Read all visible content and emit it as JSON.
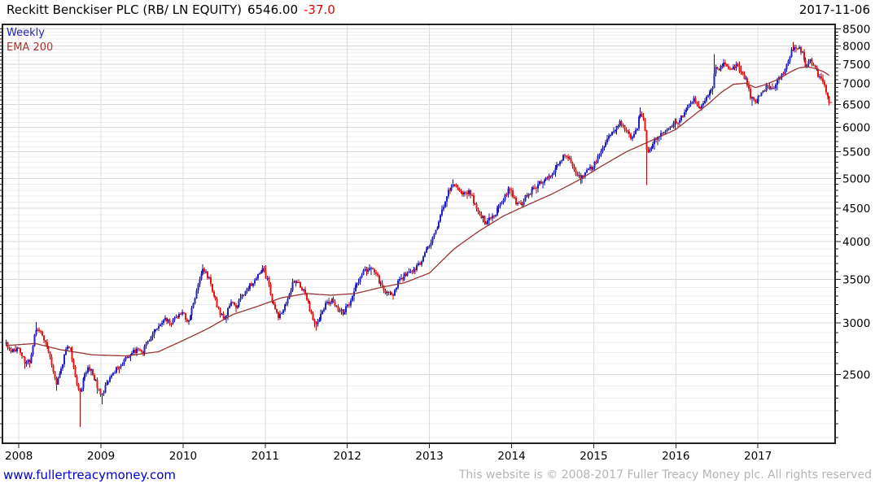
{
  "header": {
    "instrument": "Reckitt Benckiser PLC (RB/ LN EQUITY)",
    "price": "6546.00",
    "change": "-37.0",
    "date": "2017-11-06"
  },
  "legend": {
    "series1": "Weekly",
    "series2": "EMA 200"
  },
  "footer": {
    "site_link": "www.fullertreacymoney.com",
    "copyright": "This website is © 2008-2017 Fuller Treacy Money plc. All rights reserved"
  },
  "colors": {
    "up": "#2222cc",
    "up_edge": "#111199",
    "down": "#ee1111",
    "down_edge": "#bb0000",
    "ema": "#993333",
    "grid_minor": "#ededed",
    "grid_major": "#d6d6d6",
    "grid_vertical": "#dcdcdc",
    "axis": "#222222",
    "tick_text": "#000000",
    "change_text": "#e80000"
  },
  "chart_data": {
    "type": "candlestick",
    "frequency": "weekly",
    "title": "Reckitt Benckiser PLC (RB/ LN EQUITY)",
    "last_close": 6546.0,
    "change": -37.0,
    "date": "2017-11-06",
    "legend": [
      "Weekly",
      "EMA 200"
    ],
    "y_scale": "log",
    "xlabel": "",
    "ylabel": "",
    "x_ticks": [
      2008,
      2009,
      2010,
      2011,
      2012,
      2013,
      2014,
      2015,
      2016,
      2017
    ],
    "y_ticks": [
      2500,
      3000,
      3500,
      4000,
      4500,
      5000,
      5500,
      6000,
      6500,
      7000,
      7500,
      8000,
      8500
    ],
    "y_minor_step": 100,
    "xlim": [
      2007.8,
      2017.94
    ],
    "ylim": [
      1960,
      8630
    ],
    "grid": true,
    "close_path": [
      [
        2007.845,
        2790
      ],
      [
        2007.92,
        2700
      ],
      [
        2008.0,
        2760
      ],
      [
        2008.08,
        2590
      ],
      [
        2008.14,
        2630
      ],
      [
        2008.21,
        2950
      ],
      [
        2008.27,
        2890
      ],
      [
        2008.33,
        2800
      ],
      [
        2008.4,
        2600
      ],
      [
        2008.46,
        2420
      ],
      [
        2008.52,
        2560
      ],
      [
        2008.58,
        2760
      ],
      [
        2008.63,
        2720
      ],
      [
        2008.68,
        2500
      ],
      [
        2008.74,
        2320
      ],
      [
        2008.79,
        2470
      ],
      [
        2008.85,
        2560
      ],
      [
        2008.91,
        2490
      ],
      [
        2008.96,
        2390
      ],
      [
        2009.01,
        2320
      ],
      [
        2009.08,
        2440
      ],
      [
        2009.16,
        2530
      ],
      [
        2009.25,
        2600
      ],
      [
        2009.35,
        2670
      ],
      [
        2009.43,
        2730
      ],
      [
        2009.5,
        2690
      ],
      [
        2009.58,
        2810
      ],
      [
        2009.67,
        2930
      ],
      [
        2009.76,
        3050
      ],
      [
        2009.85,
        2990
      ],
      [
        2009.93,
        3070
      ],
      [
        2010.0,
        3110
      ],
      [
        2010.06,
        3000
      ],
      [
        2010.13,
        3230
      ],
      [
        2010.19,
        3450
      ],
      [
        2010.25,
        3630
      ],
      [
        2010.31,
        3520
      ],
      [
        2010.38,
        3300
      ],
      [
        2010.45,
        3080
      ],
      [
        2010.52,
        3060
      ],
      [
        2010.58,
        3250
      ],
      [
        2010.65,
        3170
      ],
      [
        2010.72,
        3310
      ],
      [
        2010.8,
        3410
      ],
      [
        2010.88,
        3490
      ],
      [
        2010.96,
        3640
      ],
      [
        2011.03,
        3490
      ],
      [
        2011.09,
        3230
      ],
      [
        2011.16,
        3050
      ],
      [
        2011.22,
        3120
      ],
      [
        2011.29,
        3340
      ],
      [
        2011.36,
        3500
      ],
      [
        2011.43,
        3430
      ],
      [
        2011.5,
        3300
      ],
      [
        2011.56,
        3090
      ],
      [
        2011.62,
        2980
      ],
      [
        2011.68,
        3110
      ],
      [
        2011.74,
        3210
      ],
      [
        2011.81,
        3240
      ],
      [
        2011.88,
        3160
      ],
      [
        2011.95,
        3110
      ],
      [
        2012.03,
        3230
      ],
      [
        2012.1,
        3410
      ],
      [
        2012.18,
        3570
      ],
      [
        2012.25,
        3640
      ],
      [
        2012.32,
        3610
      ],
      [
        2012.4,
        3460
      ],
      [
        2012.47,
        3340
      ],
      [
        2012.55,
        3310
      ],
      [
        2012.62,
        3460
      ],
      [
        2012.7,
        3560
      ],
      [
        2012.78,
        3610
      ],
      [
        2012.86,
        3660
      ],
      [
        2012.93,
        3810
      ],
      [
        2013.0,
        3960
      ],
      [
        2013.07,
        4110
      ],
      [
        2013.14,
        4400
      ],
      [
        2013.21,
        4720
      ],
      [
        2013.28,
        4900
      ],
      [
        2013.34,
        4850
      ],
      [
        2013.41,
        4720
      ],
      [
        2013.48,
        4780
      ],
      [
        2013.55,
        4580
      ],
      [
        2013.62,
        4400
      ],
      [
        2013.69,
        4290
      ],
      [
        2013.76,
        4340
      ],
      [
        2013.83,
        4480
      ],
      [
        2013.91,
        4680
      ],
      [
        2013.98,
        4840
      ],
      [
        2014.04,
        4620
      ],
      [
        2014.11,
        4550
      ],
      [
        2014.18,
        4700
      ],
      [
        2014.26,
        4810
      ],
      [
        2014.34,
        4920
      ],
      [
        2014.42,
        5000
      ],
      [
        2014.5,
        5090
      ],
      [
        2014.57,
        5260
      ],
      [
        2014.64,
        5470
      ],
      [
        2014.71,
        5350
      ],
      [
        2014.78,
        5120
      ],
      [
        2014.85,
        5010
      ],
      [
        2014.92,
        5140
      ],
      [
        2015.0,
        5230
      ],
      [
        2015.08,
        5460
      ],
      [
        2015.16,
        5710
      ],
      [
        2015.24,
        5920
      ],
      [
        2015.32,
        6080
      ],
      [
        2015.4,
        5950
      ],
      [
        2015.46,
        5700
      ],
      [
        2015.52,
        5950
      ],
      [
        2015.57,
        6320
      ],
      [
        2015.61,
        6180
      ],
      [
        2015.65,
        5450
      ],
      [
        2015.71,
        5650
      ],
      [
        2015.78,
        5780
      ],
      [
        2015.85,
        5920
      ],
      [
        2015.93,
        6050
      ],
      [
        2016.0,
        6080
      ],
      [
        2016.08,
        6250
      ],
      [
        2016.16,
        6500
      ],
      [
        2016.23,
        6620
      ],
      [
        2016.3,
        6420
      ],
      [
        2016.37,
        6670
      ],
      [
        2016.44,
        6850
      ],
      [
        2016.455,
        6880
      ],
      [
        2016.475,
        7460
      ],
      [
        2016.54,
        7380
      ],
      [
        2016.6,
        7520
      ],
      [
        2016.66,
        7350
      ],
      [
        2016.73,
        7460
      ],
      [
        2016.8,
        7290
      ],
      [
        2016.86,
        7080
      ],
      [
        2016.92,
        6620
      ],
      [
        2016.98,
        6550
      ],
      [
        2017.04,
        6810
      ],
      [
        2017.11,
        6920
      ],
      [
        2017.18,
        6880
      ],
      [
        2017.25,
        7080
      ],
      [
        2017.32,
        7300
      ],
      [
        2017.38,
        7650
      ],
      [
        2017.44,
        8020
      ],
      [
        2017.49,
        7950
      ],
      [
        2017.54,
        7800
      ],
      [
        2017.58,
        7480
      ],
      [
        2017.63,
        7600
      ],
      [
        2017.68,
        7450
      ],
      [
        2017.73,
        7240
      ],
      [
        2017.78,
        7080
      ],
      [
        2017.82,
        6900
      ],
      [
        2017.85,
        6620
      ],
      [
        2017.873,
        6546
      ]
    ],
    "ema_path": [
      [
        2007.845,
        2770
      ],
      [
        2008.2,
        2790
      ],
      [
        2008.5,
        2730
      ],
      [
        2008.9,
        2680
      ],
      [
        2009.3,
        2670
      ],
      [
        2009.7,
        2710
      ],
      [
        2010.0,
        2820
      ],
      [
        2010.3,
        2940
      ],
      [
        2010.6,
        3090
      ],
      [
        2010.9,
        3180
      ],
      [
        2011.2,
        3280
      ],
      [
        2011.5,
        3330
      ],
      [
        2011.8,
        3310
      ],
      [
        2012.1,
        3330
      ],
      [
        2012.4,
        3400
      ],
      [
        2012.7,
        3460
      ],
      [
        2013.0,
        3580
      ],
      [
        2013.3,
        3900
      ],
      [
        2013.6,
        4150
      ],
      [
        2013.9,
        4380
      ],
      [
        2014.2,
        4560
      ],
      [
        2014.5,
        4740
      ],
      [
        2014.8,
        4960
      ],
      [
        2015.1,
        5230
      ],
      [
        2015.4,
        5500
      ],
      [
        2015.7,
        5720
      ],
      [
        2016.0,
        5950
      ],
      [
        2016.2,
        6230
      ],
      [
        2016.4,
        6520
      ],
      [
        2016.55,
        6780
      ],
      [
        2016.7,
        6980
      ],
      [
        2016.85,
        7010
      ],
      [
        2016.97,
        6900
      ],
      [
        2017.1,
        6980
      ],
      [
        2017.25,
        7110
      ],
      [
        2017.4,
        7300
      ],
      [
        2017.5,
        7400
      ],
      [
        2017.6,
        7430
      ],
      [
        2017.7,
        7380
      ],
      [
        2017.8,
        7300
      ],
      [
        2017.873,
        7200
      ]
    ],
    "wick_lows": [
      [
        2008.46,
        2360
      ],
      [
        2008.74,
        2075
      ],
      [
        2009.01,
        2250
      ],
      [
        2010.52,
        3000
      ],
      [
        2011.62,
        2920
      ],
      [
        2013.73,
        4230
      ],
      [
        2014.85,
        4915
      ],
      [
        2015.65,
        4890
      ],
      [
        2016.92,
        6470
      ],
      [
        2017.86,
        6480
      ]
    ],
    "wick_highs": [
      [
        2008.21,
        3010
      ],
      [
        2010.25,
        3690
      ],
      [
        2011.0,
        3680
      ],
      [
        2012.28,
        3690
      ],
      [
        2013.28,
        4985
      ],
      [
        2015.57,
        6430
      ],
      [
        2016.475,
        7770
      ],
      [
        2017.43,
        8110
      ]
    ]
  }
}
